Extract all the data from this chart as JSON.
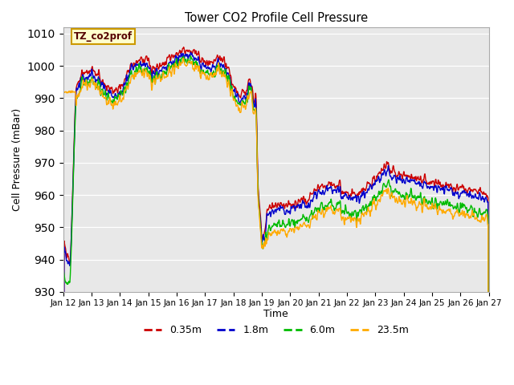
{
  "title": "Tower CO2 Profile Cell Pressure",
  "xlabel": "Time",
  "ylabel": "Cell Pressure (mBar)",
  "ylim": [
    930,
    1012
  ],
  "yticks": [
    930,
    940,
    950,
    960,
    970,
    980,
    990,
    1000,
    1010
  ],
  "background_color": "#e8e8e8",
  "legend_label": "TZ_co2prof",
  "legend_box_color": "#ffffcc",
  "legend_box_edge": "#cc9900",
  "series": {
    "0.35m": {
      "color": "#cc0000",
      "lw": 1.0
    },
    "1.8m": {
      "color": "#0000cc",
      "lw": 1.0
    },
    "6.0m": {
      "color": "#00bb00",
      "lw": 1.0
    },
    "23.5m": {
      "color": "#ffaa00",
      "lw": 1.0
    }
  },
  "x_tick_labels": [
    "Jan 12",
    "Jan 13",
    "Jan 14",
    "Jan 15",
    "Jan 16",
    "Jan 17",
    "Jan 18",
    "Jan 19",
    "Jan 20",
    "Jan 21",
    "Jan 22",
    "Jan 23",
    "Jan 24",
    "Jan 25",
    "Jan 26",
    "Jan 27"
  ]
}
